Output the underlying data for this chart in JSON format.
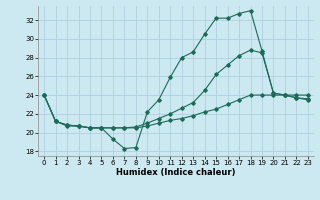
{
  "xlabel": "Humidex (Indice chaleur)",
  "bg_color": "#cce8f0",
  "grid_color": "#aaccdd",
  "line_color": "#1a6b5a",
  "xlim": [
    -0.5,
    23.5
  ],
  "ylim": [
    17.5,
    33.5
  ],
  "xticks": [
    0,
    1,
    2,
    3,
    4,
    5,
    6,
    7,
    8,
    9,
    10,
    11,
    12,
    13,
    14,
    15,
    16,
    17,
    18,
    19,
    20,
    21,
    22,
    23
  ],
  "yticks": [
    18,
    20,
    22,
    24,
    26,
    28,
    30,
    32
  ],
  "curve_top": [
    24.0,
    21.2,
    20.7,
    20.7,
    20.5,
    20.5,
    19.3,
    18.3,
    18.4,
    22.2,
    23.5,
    25.9,
    28.0,
    28.6,
    30.5,
    32.2,
    32.2,
    32.7,
    33.0,
    28.7,
    24.2,
    24.0,
    23.7,
    23.5
  ],
  "curve_mid": [
    24.0,
    21.2,
    20.8,
    20.7,
    20.5,
    20.5,
    20.5,
    20.5,
    20.6,
    21.0,
    21.5,
    22.0,
    22.6,
    23.2,
    24.5,
    26.2,
    27.2,
    28.2,
    28.8,
    28.5,
    24.2,
    24.0,
    23.7,
    23.6
  ],
  "curve_bot": [
    24.0,
    21.2,
    20.8,
    20.7,
    20.5,
    20.5,
    20.5,
    20.5,
    20.5,
    20.7,
    21.0,
    21.3,
    21.5,
    21.8,
    22.2,
    22.5,
    23.0,
    23.5,
    24.0,
    24.0,
    24.0,
    24.0,
    24.0,
    24.0
  ]
}
